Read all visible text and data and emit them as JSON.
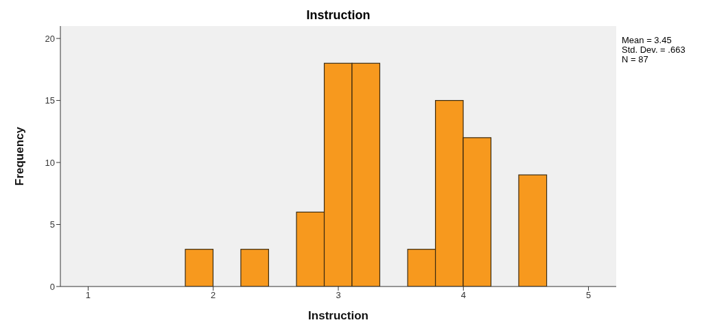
{
  "chart_data": {
    "type": "histogram",
    "title": "Instruction",
    "xlabel": "Instruction",
    "ylabel": "Frequency",
    "bins": [
      1.778,
      2.0,
      2.222,
      2.444,
      2.667,
      2.889,
      3.111,
      3.333,
      3.556,
      3.778,
      4.0,
      4.222,
      4.444,
      4.667
    ],
    "values": [
      3,
      0,
      3,
      0,
      6,
      18,
      18,
      0,
      3,
      15,
      12,
      0,
      9
    ],
    "color": "#f7991e",
    "xlim": [
      0.778,
      5.222
    ],
    "xticks": [
      1,
      2,
      3,
      4,
      5
    ],
    "ylim": [
      0,
      21
    ],
    "yticks": [
      0,
      5,
      10,
      15,
      20
    ],
    "grid": false,
    "annotations": [
      "Mean = 3.45",
      "Std. Dev. = .663",
      "N = 87"
    ]
  }
}
